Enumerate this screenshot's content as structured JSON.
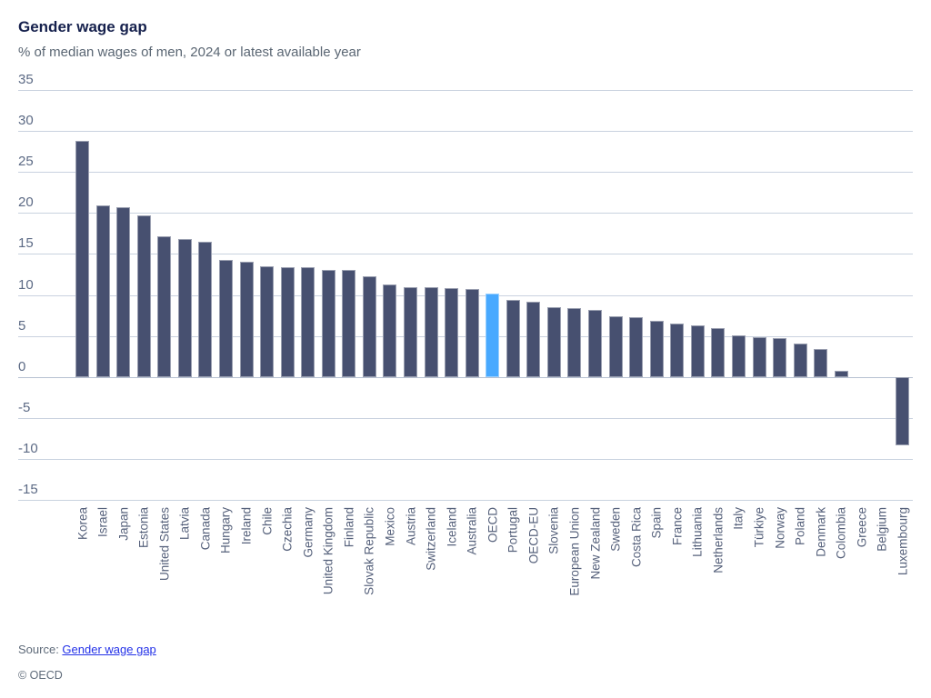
{
  "header": {
    "title": "Gender wage gap",
    "subtitle": "% of median wages of men, 2024 or latest available year"
  },
  "chart_data": {
    "type": "bar",
    "title": "Gender wage gap",
    "subtitle": "% of median wages of men, 2024 or latest available year",
    "unit": "% of median wages of men",
    "ylim": [
      -15,
      35
    ],
    "yticks": [
      35,
      30,
      25,
      20,
      15,
      10,
      5,
      0,
      -5,
      -10,
      -15
    ],
    "grid": true,
    "legend": "none",
    "bar_color": "#475070",
    "highlight_color": "#48a9ff",
    "highlight_category": "OECD",
    "categories": [
      "Korea",
      "Israel",
      "Japan",
      "Estonia",
      "United States",
      "Latvia",
      "Canada",
      "Hungary",
      "Ireland",
      "Chile",
      "Czechia",
      "Germany",
      "United Kingdom",
      "Finland",
      "Slovak Republic",
      "Mexico",
      "Austria",
      "Switzerland",
      "Iceland",
      "Australia",
      "OECD",
      "Portugal",
      "OECD-EU",
      "Slovenia",
      "European Union",
      "New Zealand",
      "Sweden",
      "Costa Rica",
      "Spain",
      "France",
      "Lithuania",
      "Netherlands",
      "Italy",
      "Türkiye",
      "Norway",
      "Poland",
      "Denmark",
      "Colombia",
      "Greece",
      "Belgium",
      "Luxembourg"
    ],
    "values": [
      28.8,
      20.9,
      20.7,
      19.7,
      17.2,
      16.8,
      16.5,
      14.3,
      14.0,
      13.5,
      13.4,
      13.4,
      13.1,
      13.0,
      12.3,
      11.3,
      11.0,
      11.0,
      10.8,
      10.7,
      10.2,
      9.4,
      9.2,
      8.5,
      8.4,
      8.2,
      7.4,
      7.3,
      6.8,
      6.5,
      6.3,
      6.0,
      5.1,
      4.9,
      4.7,
      4.1,
      3.4,
      0.7,
      null,
      null,
      -8.4
    ]
  },
  "footer": {
    "source_prefix": "Source: ",
    "source_link": "Gender wage gap",
    "copyright": "© OECD"
  }
}
